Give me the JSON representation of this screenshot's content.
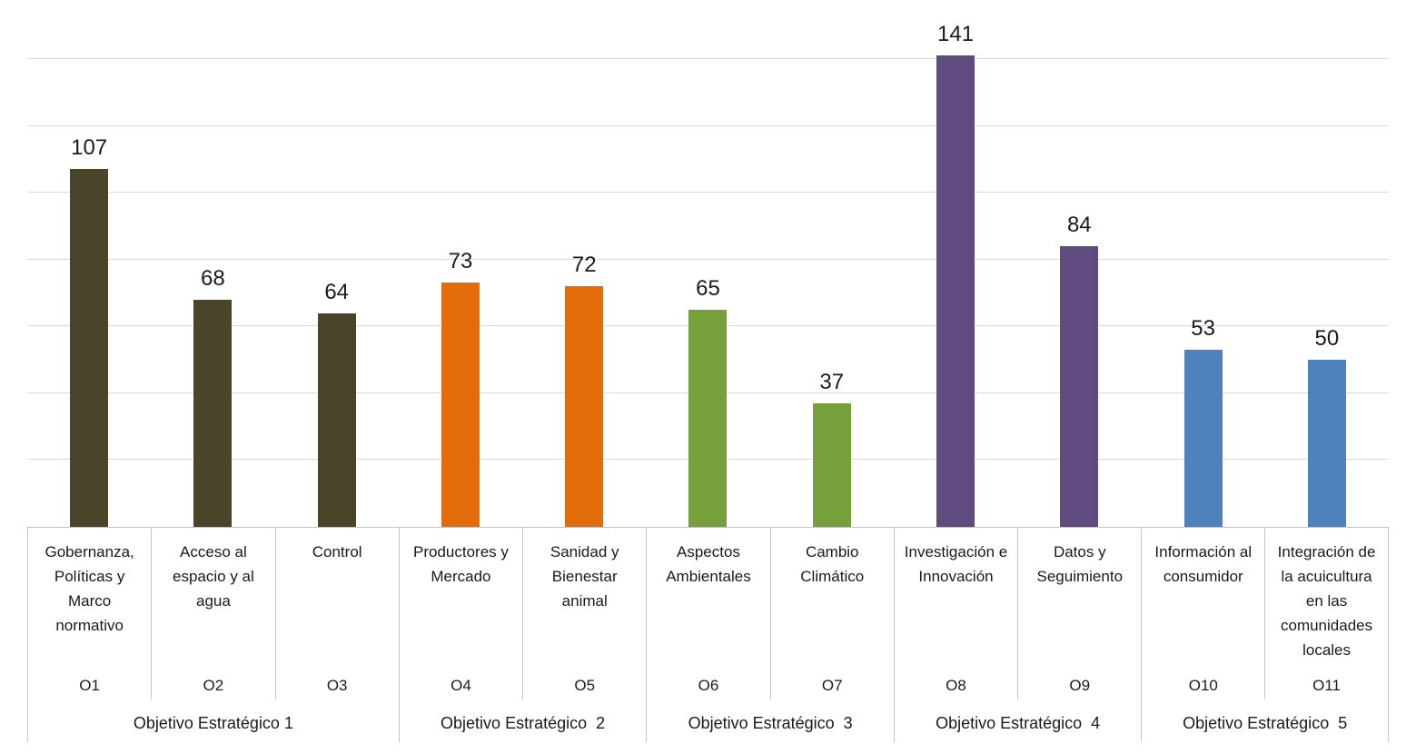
{
  "chart_data": {
    "type": "bar",
    "title": "",
    "xlabel": "",
    "ylabel": "",
    "ylim": [
      0,
      140
    ],
    "grid_step": 20,
    "grid": true,
    "legend_position": "none",
    "y_tick_labels_visible": false,
    "data_labels": true,
    "categories": [
      "Gobernanza, Políticas y Marco normativo",
      "Acceso al espacio y al agua",
      "Control",
      "Productores y Mercado",
      "Sanidad y Bienestar animal",
      "Aspectos Ambientales",
      "Cambio Climático",
      "Investigación e Innovación",
      "Datos y Seguimiento",
      "Información al consumidor",
      "Integración de la acuicultura en las comunidades locales"
    ],
    "values": [
      107,
      68,
      64,
      73,
      72,
      65,
      37,
      141,
      84,
      53,
      50
    ],
    "bars": [
      {
        "code": "O1",
        "name": "Gobernanza, Políticas y Marco normativo",
        "value": 107
      },
      {
        "code": "O2",
        "name": "Acceso al espacio y al agua",
        "value": 68
      },
      {
        "code": "O3",
        "name": "Control",
        "value": 64
      },
      {
        "code": "O4",
        "name": "Productores y Mercado",
        "value": 73
      },
      {
        "code": "O5",
        "name": "Sanidad y Bienestar animal",
        "value": 72
      },
      {
        "code": "O6",
        "name": "Aspectos Ambientales",
        "value": 65
      },
      {
        "code": "O7",
        "name": "Cambio Climático",
        "value": 37
      },
      {
        "code": "O8",
        "name": "Investigación e Innovación",
        "value": 141
      },
      {
        "code": "O9",
        "name": "Datos y Seguimiento",
        "value": 84
      },
      {
        "code": "O10",
        "name": "Información al consumidor",
        "value": 53
      },
      {
        "code": "O11",
        "name": "Integración de la acuicultura en las comunidades locales",
        "value": 50
      }
    ],
    "groups": [
      {
        "label": "Objetivo Estratégico 1",
        "span": 3,
        "color": "#4A4429"
      },
      {
        "label": "Objetivo Estratégico  2",
        "span": 2,
        "color": "#E36C0A"
      },
      {
        "label": "Objetivo Estratégico  3",
        "span": 2,
        "color": "#77A03C"
      },
      {
        "label": "Objetivo Estratégico  4",
        "span": 2,
        "color": "#5F4B80"
      },
      {
        "label": "Objetivo Estratégico  5",
        "span": 2,
        "color": "#4F81BD"
      }
    ],
    "colors": {
      "gridline": "#D9D9D9",
      "axis_table_line": "#C4C4C4",
      "label_text": "#1A1A1A",
      "background": "#FFFFFF"
    }
  }
}
